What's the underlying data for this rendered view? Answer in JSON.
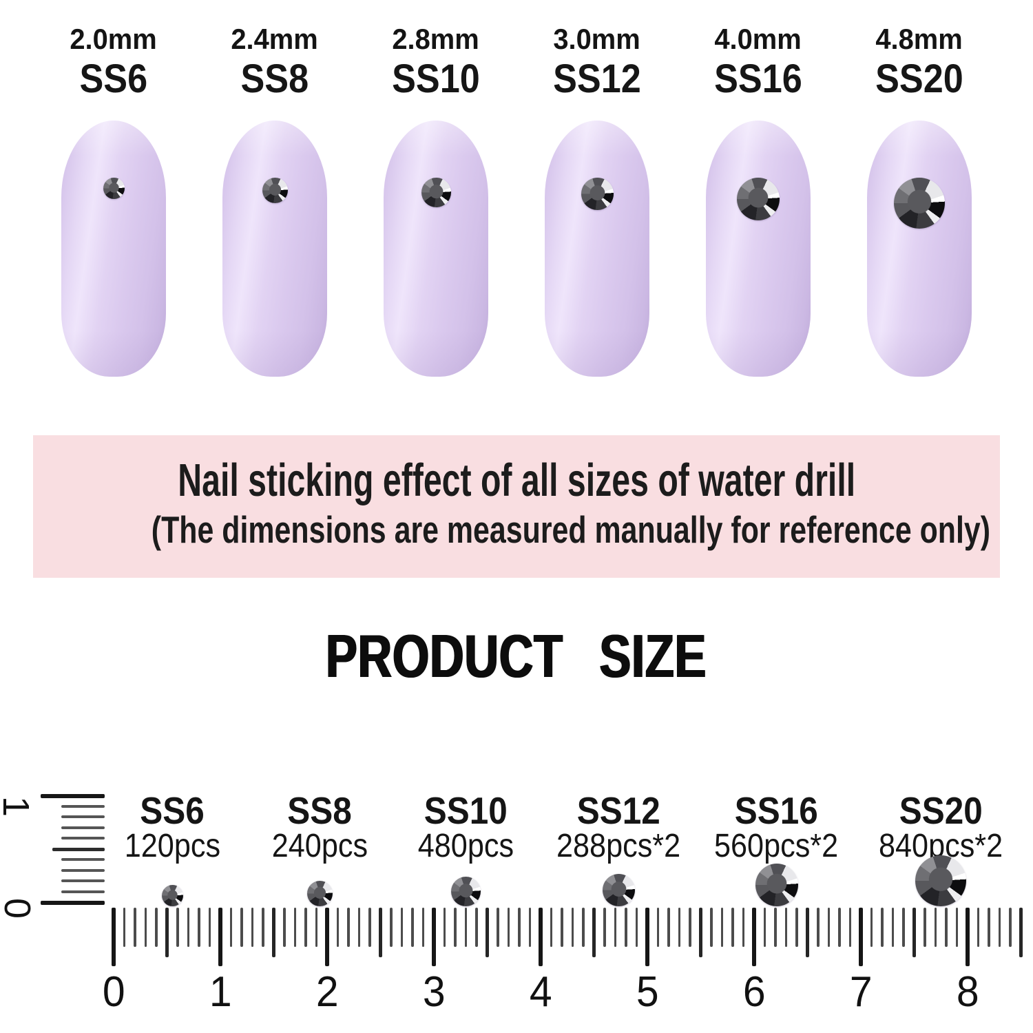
{
  "sizes": [
    {
      "mm_label": "2.0mm",
      "ss_label": "SS6",
      "size_mm": 2.0,
      "qty_label": "120pcs",
      "ruler_position_cm": 0.55
    },
    {
      "mm_label": "2.4mm",
      "ss_label": "SS8",
      "size_mm": 2.4,
      "qty_label": "240pcs",
      "ruler_position_cm": 1.93
    },
    {
      "mm_label": "2.8mm",
      "ss_label": "SS10",
      "size_mm": 2.8,
      "qty_label": "480pcs",
      "ruler_position_cm": 3.3
    },
    {
      "mm_label": "3.0mm",
      "ss_label": "SS12",
      "size_mm": 3.0,
      "qty_label": "288pcs*2",
      "ruler_position_cm": 4.73
    },
    {
      "mm_label": "4.0mm",
      "ss_label": "SS16",
      "size_mm": 4.0,
      "qty_label": "560pcs*2",
      "ruler_position_cm": 6.21
    },
    {
      "mm_label": "4.8mm",
      "ss_label": "SS20",
      "size_mm": 4.8,
      "qty_label": "840pcs*2",
      "ruler_position_cm": 7.75
    }
  ],
  "banner": {
    "line1": "Nail sticking effect of all sizes of water drill",
    "line2": "(The dimensions are measured manually for reference only)"
  },
  "heading": "PRODUCT SIZE",
  "ruler": {
    "h_numbers": [
      "0",
      "1",
      "2",
      "3",
      "4",
      "5",
      "6",
      "7",
      "8"
    ],
    "v_top_label": "1",
    "v_bottom_label": "0"
  },
  "colors": {
    "nail": "#dccbee",
    "banner_bg": "#f9dee1",
    "stone_center": "#59595d",
    "text": "#1a1a1a"
  }
}
